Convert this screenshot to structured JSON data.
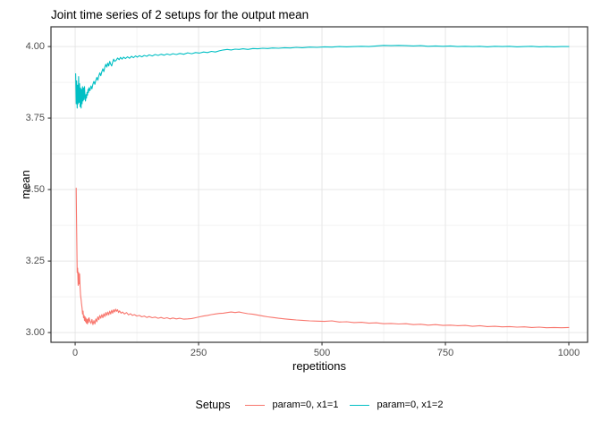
{
  "chart_data": {
    "type": "line",
    "title": "Joint time series of 2 setups for the output mean",
    "xlabel": "repetitions",
    "ylabel": "mean",
    "legend_title": "Setups",
    "legend_position": "bottom",
    "grid": "major and minor, light grey on white panel",
    "panel_border_color": "#333333",
    "grid_major_color": "#e6e6e6",
    "grid_minor_color": "#f2f2f2",
    "tick_text_color": "#4d4d4d",
    "x_ticks": [
      0,
      250,
      500,
      750,
      1000
    ],
    "x_tick_labels": [
      "0",
      "250",
      "500",
      "750",
      "1000"
    ],
    "y_ticks": [
      3.0,
      3.25,
      3.5,
      3.75,
      4.0
    ],
    "y_tick_labels": [
      "3.00",
      "3.25",
      "3.50",
      "3.75",
      "4.00"
    ],
    "xlim": [
      -49,
      1038
    ],
    "ylim": [
      2.966,
      4.069
    ],
    "series": [
      {
        "name": "param=0, x1=1",
        "color": "#F8766D",
        "points": [
          [
            2,
            3.505
          ],
          [
            3,
            3.365
          ],
          [
            4,
            3.21
          ],
          [
            5,
            3.225
          ],
          [
            6,
            3.165
          ],
          [
            7,
            3.21
          ],
          [
            8,
            3.17
          ],
          [
            9,
            3.205
          ],
          [
            10,
            3.155
          ],
          [
            11,
            3.13
          ],
          [
            12,
            3.115
          ],
          [
            13,
            3.1
          ],
          [
            14,
            3.085
          ],
          [
            15,
            3.065
          ],
          [
            16,
            3.075
          ],
          [
            17,
            3.052
          ],
          [
            18,
            3.06
          ],
          [
            19,
            3.042
          ],
          [
            20,
            3.055
          ],
          [
            21,
            3.038
          ],
          [
            22,
            3.05
          ],
          [
            23,
            3.033
          ],
          [
            24,
            3.045
          ],
          [
            25,
            3.03
          ],
          [
            26,
            3.048
          ],
          [
            27,
            3.036
          ],
          [
            28,
            3.052
          ],
          [
            30,
            3.04
          ],
          [
            32,
            3.032
          ],
          [
            34,
            3.046
          ],
          [
            36,
            3.028
          ],
          [
            38,
            3.042
          ],
          [
            40,
            3.03
          ],
          [
            42,
            3.048
          ],
          [
            44,
            3.038
          ],
          [
            46,
            3.055
          ],
          [
            48,
            3.045
          ],
          [
            50,
            3.06
          ],
          [
            52,
            3.05
          ],
          [
            54,
            3.063
          ],
          [
            56,
            3.052
          ],
          [
            58,
            3.066
          ],
          [
            60,
            3.056
          ],
          [
            62,
            3.07
          ],
          [
            64,
            3.06
          ],
          [
            66,
            3.072
          ],
          [
            68,
            3.062
          ],
          [
            70,
            3.075
          ],
          [
            72,
            3.065
          ],
          [
            74,
            3.078
          ],
          [
            76,
            3.068
          ],
          [
            78,
            3.08
          ],
          [
            80,
            3.072
          ],
          [
            82,
            3.082
          ],
          [
            84,
            3.074
          ],
          [
            86,
            3.08
          ],
          [
            88,
            3.07
          ],
          [
            90,
            3.076
          ],
          [
            93,
            3.068
          ],
          [
            96,
            3.072
          ],
          [
            100,
            3.065
          ],
          [
            104,
            3.07
          ],
          [
            108,
            3.062
          ],
          [
            112,
            3.066
          ],
          [
            116,
            3.06
          ],
          [
            120,
            3.063
          ],
          [
            125,
            3.058
          ],
          [
            130,
            3.06
          ],
          [
            135,
            3.055
          ],
          [
            140,
            3.058
          ],
          [
            145,
            3.053
          ],
          [
            150,
            3.056
          ],
          [
            156,
            3.052
          ],
          [
            162,
            3.054
          ],
          [
            168,
            3.05
          ],
          [
            174,
            3.053
          ],
          [
            180,
            3.049
          ],
          [
            186,
            3.052
          ],
          [
            192,
            3.048
          ],
          [
            198,
            3.051
          ],
          [
            205,
            3.048
          ],
          [
            212,
            3.05
          ],
          [
            220,
            3.047
          ],
          [
            228,
            3.048
          ],
          [
            236,
            3.049
          ],
          [
            244,
            3.052
          ],
          [
            252,
            3.055
          ],
          [
            260,
            3.058
          ],
          [
            268,
            3.06
          ],
          [
            276,
            3.063
          ],
          [
            284,
            3.065
          ],
          [
            292,
            3.067
          ],
          [
            300,
            3.068
          ],
          [
            308,
            3.07
          ],
          [
            316,
            3.072
          ],
          [
            324,
            3.07
          ],
          [
            332,
            3.072
          ],
          [
            340,
            3.069
          ],
          [
            350,
            3.066
          ],
          [
            360,
            3.064
          ],
          [
            370,
            3.061
          ],
          [
            380,
            3.058
          ],
          [
            390,
            3.055
          ],
          [
            400,
            3.053
          ],
          [
            412,
            3.05
          ],
          [
            424,
            3.048
          ],
          [
            436,
            3.046
          ],
          [
            448,
            3.044
          ],
          [
            460,
            3.043
          ],
          [
            475,
            3.041
          ],
          [
            490,
            3.04
          ],
          [
            505,
            3.039
          ],
          [
            520,
            3.041
          ],
          [
            535,
            3.037
          ],
          [
            550,
            3.038
          ],
          [
            565,
            3.035
          ],
          [
            580,
            3.036
          ],
          [
            595,
            3.033
          ],
          [
            610,
            3.034
          ],
          [
            625,
            3.031
          ],
          [
            640,
            3.032
          ],
          [
            655,
            3.03
          ],
          [
            670,
            3.031
          ],
          [
            685,
            3.028
          ],
          [
            700,
            3.029
          ],
          [
            715,
            3.026
          ],
          [
            730,
            3.028
          ],
          [
            745,
            3.025
          ],
          [
            760,
            3.026
          ],
          [
            775,
            3.024
          ],
          [
            790,
            3.025
          ],
          [
            805,
            3.022
          ],
          [
            820,
            3.024
          ],
          [
            835,
            3.021
          ],
          [
            850,
            3.022
          ],
          [
            865,
            3.02
          ],
          [
            880,
            3.021
          ],
          [
            895,
            3.019
          ],
          [
            910,
            3.02
          ],
          [
            925,
            3.018
          ],
          [
            940,
            3.019
          ],
          [
            955,
            3.017
          ],
          [
            970,
            3.018
          ],
          [
            985,
            3.017
          ],
          [
            1000,
            3.018
          ]
        ]
      },
      {
        "name": "param=0, x1=2",
        "color": "#00BFC4",
        "points": [
          [
            1,
            3.905
          ],
          [
            2,
            3.8
          ],
          [
            3,
            3.88
          ],
          [
            4,
            3.785
          ],
          [
            5,
            3.865
          ],
          [
            6,
            3.8
          ],
          [
            7,
            3.895
          ],
          [
            8,
            3.805
          ],
          [
            9,
            3.87
          ],
          [
            10,
            3.79
          ],
          [
            11,
            3.855
          ],
          [
            12,
            3.785
          ],
          [
            13,
            3.85
          ],
          [
            14,
            3.8
          ],
          [
            15,
            3.86
          ],
          [
            16,
            3.81
          ],
          [
            17,
            3.855
          ],
          [
            18,
            3.815
          ],
          [
            19,
            3.86
          ],
          [
            20,
            3.825
          ],
          [
            21,
            3.81
          ],
          [
            22,
            3.832
          ],
          [
            23,
            3.82
          ],
          [
            24,
            3.84
          ],
          [
            25,
            3.83
          ],
          [
            26,
            3.85
          ],
          [
            27,
            3.84
          ],
          [
            28,
            3.856
          ],
          [
            30,
            3.846
          ],
          [
            32,
            3.862
          ],
          [
            34,
            3.852
          ],
          [
            36,
            3.868
          ],
          [
            38,
            3.878
          ],
          [
            40,
            3.868
          ],
          [
            42,
            3.882
          ],
          [
            44,
            3.892
          ],
          [
            46,
            3.882
          ],
          [
            48,
            3.898
          ],
          [
            50,
            3.908
          ],
          [
            52,
            3.898
          ],
          [
            54,
            3.912
          ],
          [
            56,
            3.922
          ],
          [
            58,
            3.912
          ],
          [
            60,
            3.928
          ],
          [
            62,
            3.938
          ],
          [
            64,
            3.928
          ],
          [
            66,
            3.942
          ],
          [
            68,
            3.932
          ],
          [
            70,
            3.948
          ],
          [
            72,
            3.938
          ],
          [
            74,
            3.932
          ],
          [
            76,
            3.946
          ],
          [
            78,
            3.956
          ],
          [
            80,
            3.948
          ],
          [
            83,
            3.952
          ],
          [
            86,
            3.96
          ],
          [
            89,
            3.954
          ],
          [
            92,
            3.962
          ],
          [
            95,
            3.956
          ],
          [
            98,
            3.963
          ],
          [
            102,
            3.958
          ],
          [
            106,
            3.964
          ],
          [
            110,
            3.959
          ],
          [
            114,
            3.966
          ],
          [
            118,
            3.961
          ],
          [
            122,
            3.967
          ],
          [
            126,
            3.963
          ],
          [
            130,
            3.968
          ],
          [
            135,
            3.964
          ],
          [
            140,
            3.969
          ],
          [
            145,
            3.966
          ],
          [
            150,
            3.971
          ],
          [
            156,
            3.967
          ],
          [
            162,
            3.972
          ],
          [
            168,
            3.969
          ],
          [
            174,
            3.973
          ],
          [
            180,
            3.97
          ],
          [
            186,
            3.974
          ],
          [
            192,
            3.971
          ],
          [
            198,
            3.975
          ],
          [
            205,
            3.972
          ],
          [
            212,
            3.976
          ],
          [
            220,
            3.973
          ],
          [
            228,
            3.978
          ],
          [
            236,
            3.975
          ],
          [
            244,
            3.979
          ],
          [
            252,
            3.977
          ],
          [
            260,
            3.981
          ],
          [
            268,
            3.979
          ],
          [
            276,
            3.983
          ],
          [
            284,
            3.981
          ],
          [
            292,
            3.985
          ],
          [
            300,
            3.988
          ],
          [
            308,
            3.99
          ],
          [
            316,
            3.988
          ],
          [
            324,
            3.991
          ],
          [
            332,
            3.99
          ],
          [
            340,
            3.992
          ],
          [
            350,
            3.99
          ],
          [
            360,
            3.993
          ],
          [
            370,
            3.992
          ],
          [
            380,
            3.994
          ],
          [
            390,
            3.993
          ],
          [
            400,
            3.995
          ],
          [
            412,
            3.994
          ],
          [
            424,
            3.996
          ],
          [
            436,
            3.995
          ],
          [
            448,
            3.997
          ],
          [
            460,
            3.996
          ],
          [
            475,
            3.998
          ],
          [
            490,
            3.997
          ],
          [
            505,
            3.999
          ],
          [
            520,
            3.998
          ],
          [
            535,
            4.0
          ],
          [
            550,
            3.999
          ],
          [
            565,
            4.0
          ],
          [
            580,
            4.001
          ],
          [
            595,
            4.0
          ],
          [
            610,
            4.002
          ],
          [
            625,
            4.004
          ],
          [
            640,
            4.003
          ],
          [
            655,
            4.004
          ],
          [
            670,
            4.003
          ],
          [
            685,
            4.002
          ],
          [
            700,
            4.003
          ],
          [
            715,
            4.001
          ],
          [
            730,
            4.002
          ],
          [
            745,
            4.001
          ],
          [
            760,
            4.002
          ],
          [
            775,
            4.0
          ],
          [
            790,
            4.001
          ],
          [
            805,
            4.0
          ],
          [
            820,
            4.001
          ],
          [
            835,
            3.999
          ],
          [
            850,
            4.001
          ],
          [
            865,
            4.0
          ],
          [
            880,
            4.001
          ],
          [
            895,
            3.999
          ],
          [
            910,
            4.0
          ],
          [
            925,
            4.001
          ],
          [
            940,
            3.999
          ],
          [
            955,
            4.0
          ],
          [
            970,
            3.999
          ],
          [
            985,
            4.0
          ],
          [
            1000,
            4.0
          ]
        ]
      }
    ]
  }
}
